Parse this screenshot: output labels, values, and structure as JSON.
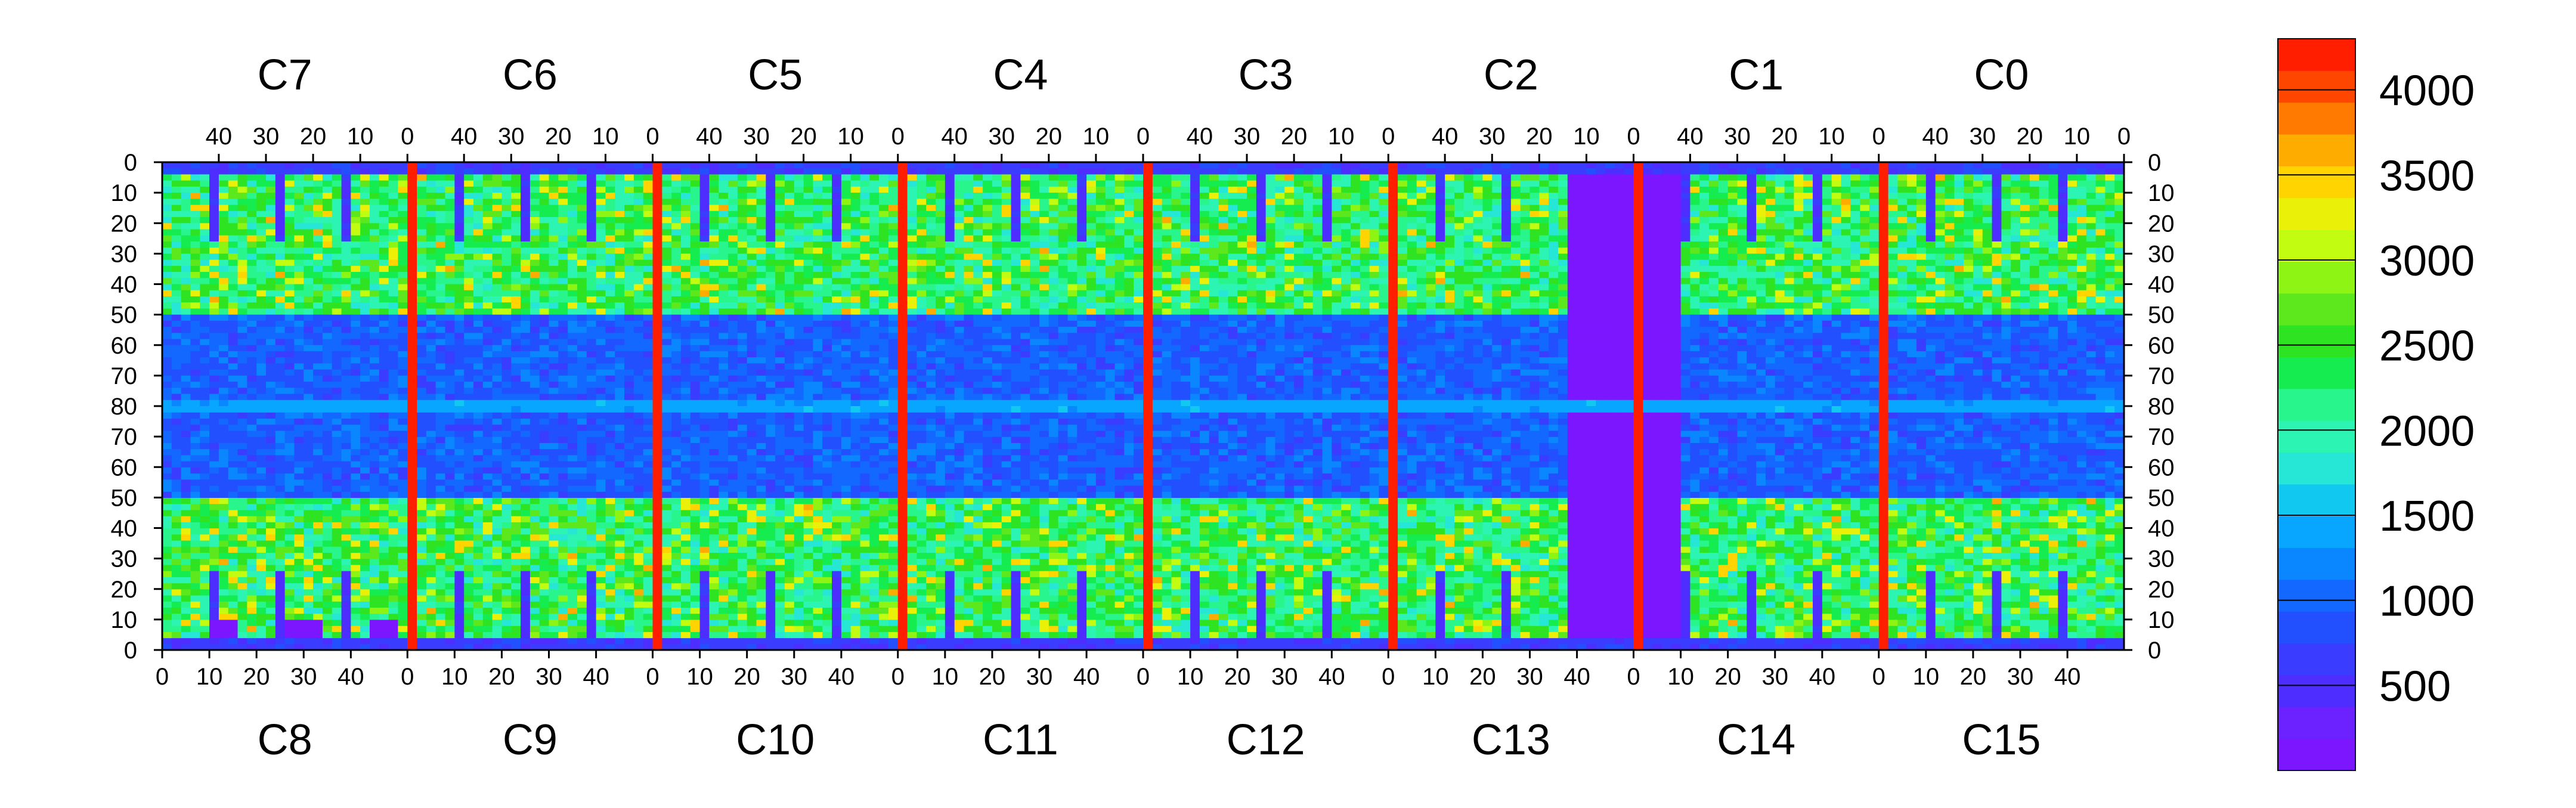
{
  "chart_data": {
    "type": "heatmap",
    "title": "",
    "colorbar": {
      "min": 0,
      "max": 4300,
      "tick_values": [
        500,
        1000,
        1500,
        2000,
        2500,
        3000,
        3500,
        4000
      ],
      "tick_labels": [
        "500",
        "1000",
        "1500",
        "2000",
        "2500",
        "3000",
        "3500",
        "4000"
      ],
      "colors": [
        "#7b16ff",
        "#6c22ff",
        "#4d2dff",
        "#3a3cff",
        "#2250ff",
        "#1268ff",
        "#0a86ff",
        "#08a6ff",
        "#10c8f0",
        "#26e6d6",
        "#2cf5b4",
        "#28f58c",
        "#14ec50",
        "#2ee422",
        "#5ce81c",
        "#8ef414",
        "#c2fc10",
        "#eaf008",
        "#ffd400",
        "#ffac00",
        "#ff7a00",
        "#ff4600",
        "#ff1e00"
      ]
    },
    "top_chips": [
      "C7",
      "C6",
      "C5",
      "C4",
      "C3",
      "C2",
      "C1",
      "C0"
    ],
    "bottom_chips": [
      "C8",
      "C9",
      "C10",
      "C11",
      "C12",
      "C13",
      "C14",
      "C15"
    ],
    "top_axis_ticks": [
      "40",
      "30",
      "20",
      "10",
      "0"
    ],
    "bottom_axis_ticks": [
      "0",
      "10",
      "20",
      "30",
      "40"
    ],
    "left_axis_ticks": [
      "0",
      "10",
      "20",
      "30",
      "40",
      "50",
      "60",
      "70",
      "80",
      "70",
      "60",
      "50",
      "40",
      "30",
      "20",
      "10",
      "0"
    ],
    "right_axis_ticks": [
      "0",
      "10",
      "20",
      "30",
      "40",
      "50",
      "60",
      "70",
      "80",
      "70",
      "60",
      "50",
      "40",
      "30",
      "20",
      "10",
      "0"
    ],
    "chip_columns": 52,
    "rows_per_half": 80,
    "typical_levels": {
      "dead_pixel_islands": 100,
      "chip_edge_regions": 500,
      "central_low_band": 700,
      "sensitive_area": 1800,
      "sensitive_area_hot": 2800,
      "chip_boundary_columns": 4200,
      "vertical_strips": 400
    }
  }
}
